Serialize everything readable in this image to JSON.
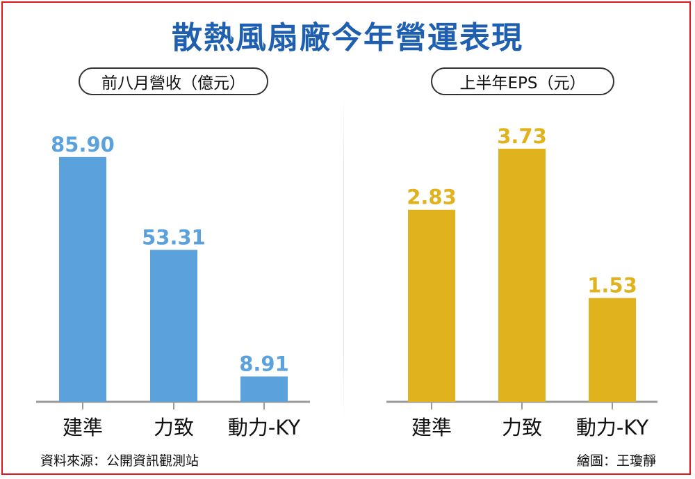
{
  "title": "散熱風扇廠今年營運表現",
  "source": "資料來源：公開資訊觀測站",
  "credit": "繪圖：王瓊靜",
  "chart_data": [
    {
      "type": "bar",
      "title": "前八月營收（億元）",
      "categories": [
        "建準",
        "力致",
        "動力-KY"
      ],
      "values": [
        85.9,
        53.31,
        8.91
      ],
      "value_labels": [
        "85.90",
        "53.31",
        "8.91"
      ],
      "ylim": [
        0,
        100
      ],
      "color": "#5ba2dd",
      "grid": false,
      "legend": "none"
    },
    {
      "type": "bar",
      "title": "上半年EPS（元）",
      "categories": [
        "建準",
        "力致",
        "動力-KY"
      ],
      "values": [
        2.83,
        3.73,
        1.53
      ],
      "value_labels": [
        "2.83",
        "3.73",
        "1.53"
      ],
      "ylim": [
        0,
        4.2
      ],
      "color": "#e0b31e",
      "grid": false,
      "legend": "none"
    }
  ]
}
